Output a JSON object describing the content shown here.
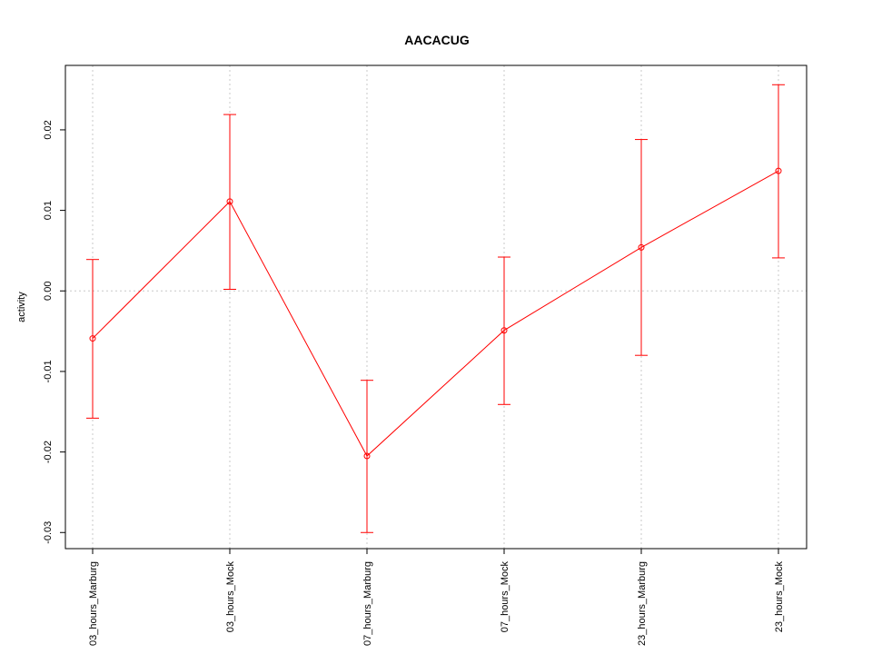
{
  "chart_data": {
    "type": "line",
    "title": "AACACUG",
    "xlabel": "",
    "ylabel": "activity",
    "categories": [
      "03_hours_Marburg",
      "03_hours_Mock",
      "07_hours_Marburg",
      "07_hours_Mock",
      "23_hours_Marburg",
      "23_hours_Mock"
    ],
    "series": [
      {
        "values": [
          -0.0059,
          0.0111,
          -0.0205,
          -0.0049,
          0.0054,
          0.0149
        ],
        "lower": [
          -0.0158,
          0.0002,
          -0.03,
          -0.0141,
          -0.008,
          0.0041
        ],
        "upper": [
          0.0039,
          0.0219,
          -0.0111,
          0.0042,
          0.0188,
          0.0256
        ]
      }
    ],
    "yticks": [
      "-0.03",
      "-0.02",
      "-0.01",
      "0.00",
      "0.01",
      "0.02"
    ],
    "ylim": [
      -0.032,
      0.028
    ],
    "grid": true,
    "colors": {
      "series": "#ff0000",
      "grid": "#c8c8c8",
      "axis": "#000000"
    }
  }
}
